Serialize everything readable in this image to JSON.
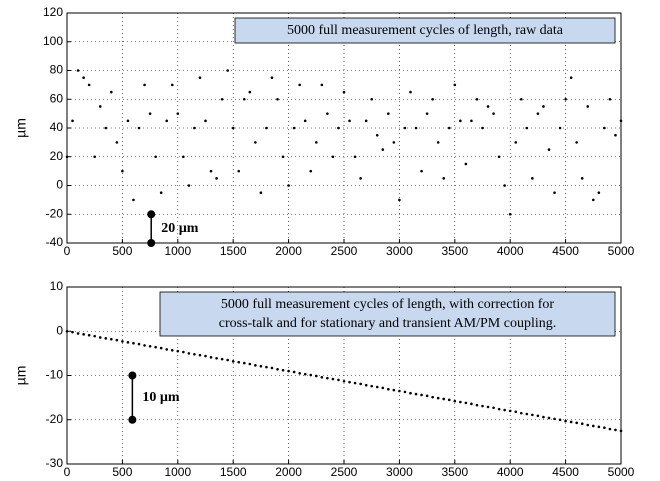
{
  "chart_data": [
    {
      "type": "scatter",
      "color": "#000000",
      "ylabel": "µm",
      "annotation": [
        "5000 full measurement cycles of length, raw data"
      ],
      "scale_bar": {
        "x": 760,
        "y": [
          -40,
          -20
        ],
        "label": "20 µm"
      },
      "xlim": [
        0,
        5000
      ],
      "xticks": [
        0,
        500,
        1000,
        1500,
        2000,
        2500,
        3000,
        3500,
        4000,
        4500,
        5000
      ],
      "ylim": [
        -40,
        120
      ],
      "yticks": [
        -40,
        -20,
        0,
        20,
        40,
        60,
        80,
        100,
        120
      ],
      "grid": true,
      "x": [
        0,
        50,
        100,
        150,
        200,
        250,
        300,
        350,
        400,
        450,
        500,
        550,
        600,
        650,
        700,
        750,
        800,
        850,
        900,
        950,
        1000,
        1050,
        1100,
        1150,
        1200,
        1250,
        1300,
        1350,
        1400,
        1450,
        1500,
        1550,
        1600,
        1650,
        1700,
        1750,
        1800,
        1850,
        1900,
        1950,
        2000,
        2050,
        2100,
        2150,
        2200,
        2250,
        2300,
        2350,
        2400,
        2450,
        2500,
        2550,
        2600,
        2650,
        2700,
        2750,
        2800,
        2850,
        2900,
        2950,
        3000,
        3050,
        3100,
        3150,
        3200,
        3250,
        3300,
        3350,
        3400,
        3450,
        3500,
        3550,
        3600,
        3650,
        3700,
        3750,
        3800,
        3850,
        3900,
        3950,
        4000,
        4050,
        4100,
        4150,
        4200,
        4250,
        4300,
        4350,
        4400,
        4450,
        4500,
        4550,
        4600,
        4650,
        4700,
        4750,
        4800,
        4850,
        4900,
        4950,
        5000
      ],
      "values": [
        20,
        45,
        80,
        75,
        70,
        20,
        55,
        40,
        65,
        30,
        10,
        45,
        -10,
        40,
        70,
        50,
        20,
        -5,
        45,
        70,
        50,
        20,
        0,
        40,
        75,
        45,
        10,
        5,
        60,
        80,
        40,
        10,
        60,
        65,
        30,
        -5,
        40,
        75,
        60,
        20,
        0,
        40,
        70,
        45,
        10,
        30,
        70,
        50,
        20,
        40,
        65,
        45,
        20,
        5,
        45,
        60,
        35,
        25,
        50,
        30,
        -10,
        40,
        65,
        40,
        10,
        50,
        60,
        30,
        5,
        40,
        70,
        45,
        15,
        45,
        60,
        40,
        55,
        50,
        20,
        0,
        -20,
        30,
        60,
        40,
        5,
        50,
        55,
        25,
        -5,
        40,
        60,
        75,
        30,
        5,
        55,
        -10,
        -5,
        40,
        60,
        35,
        45
      ]
    },
    {
      "type": "scatter",
      "color": "#000000",
      "ylabel": "µm",
      "annotation": [
        "5000 full measurement cycles of length, with correction for",
        "cross-talk and for stationary and transient AM/PM coupling."
      ],
      "scale_bar": {
        "x": 590,
        "y": [
          -20,
          -10
        ],
        "label": "10 µm"
      },
      "xlim": [
        0,
        5000
      ],
      "xticks": [
        0,
        500,
        1000,
        1500,
        2000,
        2500,
        3000,
        3500,
        4000,
        4500,
        5000
      ],
      "ylim": [
        -30,
        10
      ],
      "yticks": [
        -30,
        -20,
        -10,
        0,
        10
      ],
      "grid": true,
      "x": [
        0,
        50,
        100,
        150,
        200,
        250,
        300,
        350,
        400,
        450,
        500,
        550,
        600,
        650,
        700,
        750,
        800,
        850,
        900,
        950,
        1000,
        1050,
        1100,
        1150,
        1200,
        1250,
        1300,
        1350,
        1400,
        1450,
        1500,
        1550,
        1600,
        1650,
        1700,
        1750,
        1800,
        1850,
        1900,
        1950,
        2000,
        2050,
        2100,
        2150,
        2200,
        2250,
        2300,
        2350,
        2400,
        2450,
        2500,
        2550,
        2600,
        2650,
        2700,
        2750,
        2800,
        2850,
        2900,
        2950,
        3000,
        3050,
        3100,
        3150,
        3200,
        3250,
        3300,
        3350,
        3400,
        3450,
        3500,
        3550,
        3600,
        3650,
        3700,
        3750,
        3800,
        3850,
        3900,
        3950,
        4000,
        4050,
        4100,
        4150,
        4200,
        4250,
        4300,
        4350,
        4400,
        4450,
        4500,
        4550,
        4600,
        4650,
        4700,
        4750,
        4800,
        4850,
        4900,
        4950,
        5000
      ],
      "values": [
        0,
        -0.2,
        -0.5,
        -0.7,
        -0.9,
        -1.1,
        -1.4,
        -1.6,
        -1.8,
        -2.0,
        -2.3,
        -2.5,
        -2.7,
        -2.9,
        -3.2,
        -3.4,
        -3.6,
        -3.8,
        -4.1,
        -4.3,
        -4.5,
        -4.7,
        -5.0,
        -5.2,
        -5.4,
        -5.6,
        -5.9,
        -6.1,
        -6.3,
        -6.5,
        -6.8,
        -7.0,
        -7.2,
        -7.4,
        -7.7,
        -7.9,
        -8.1,
        -8.3,
        -8.6,
        -8.8,
        -9.0,
        -9.2,
        -9.5,
        -9.7,
        -9.9,
        -10.1,
        -10.4,
        -10.6,
        -10.8,
        -11.0,
        -11.3,
        -11.5,
        -11.7,
        -11.9,
        -12.2,
        -12.4,
        -12.6,
        -12.8,
        -13.1,
        -13.3,
        -13.5,
        -13.7,
        -14.0,
        -14.2,
        -14.4,
        -14.6,
        -14.9,
        -15.1,
        -15.3,
        -15.5,
        -15.8,
        -16.0,
        -16.2,
        -16.4,
        -16.7,
        -16.9,
        -17.1,
        -17.3,
        -17.6,
        -17.8,
        -18.0,
        -18.2,
        -18.5,
        -18.7,
        -18.9,
        -19.1,
        -19.4,
        -19.6,
        -19.8,
        -20.0,
        -20.3,
        -20.5,
        -20.7,
        -20.9,
        -21.2,
        -21.4,
        -21.6,
        -21.8,
        -22.1,
        -22.3,
        -22.5
      ]
    }
  ]
}
